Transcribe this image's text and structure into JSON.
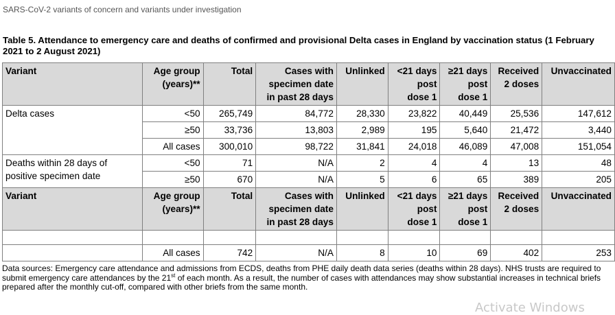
{
  "header": {
    "doc_title": "SARS-CoV-2 variants of concern and variants under investigation"
  },
  "table": {
    "caption": "Table 5. Attendance to emergency care and deaths of confirmed and provisional Delta cases in England by vaccination status (1 February 2021 to 2 August 2021)",
    "columns": [
      [
        "Variant"
      ],
      [
        "Age group",
        "(years)**"
      ],
      [
        "Total"
      ],
      [
        "Cases with",
        "specimen date",
        "in past 28 days"
      ],
      [
        "Unlinked"
      ],
      [
        "<21 days",
        "post",
        "dose 1"
      ],
      [
        "≥21 days",
        "post",
        "dose 1"
      ],
      [
        "Received",
        "2 doses"
      ],
      [
        "Unvaccinated"
      ]
    ],
    "delta_label": "Delta cases",
    "delta_rows": [
      [
        "<50",
        "265,749",
        "84,772",
        "28,330",
        "23,822",
        "40,449",
        "25,536",
        "147,612"
      ],
      [
        "≥50",
        "33,736",
        "13,803",
        "2,989",
        "195",
        "5,640",
        "21,472",
        "3,440"
      ],
      [
        "All cases",
        "300,010",
        "98,722",
        "31,841",
        "24,018",
        "46,089",
        "47,008",
        "151,054"
      ]
    ],
    "deaths_label": [
      "Deaths within 28 days of",
      "positive specimen date"
    ],
    "deaths_rows": [
      [
        "<50",
        "71",
        "N/A",
        "2",
        "4",
        "4",
        "13",
        "48"
      ],
      [
        "≥50",
        "670",
        "N/A",
        "5",
        "6",
        "65",
        "389",
        "205"
      ]
    ],
    "columns_repeat": [
      [
        "Variant"
      ],
      [
        "Age group",
        "(years)**"
      ],
      [
        "Total"
      ],
      [
        "Cases with",
        "specimen date",
        "in past 28 days"
      ],
      [
        "Unlinked"
      ],
      [
        "<21 days",
        "post",
        "dose 1"
      ],
      [
        "≥21 days",
        "post",
        "dose 1"
      ],
      [
        "Received",
        "2 doses"
      ],
      [
        "Unvaccinated"
      ]
    ],
    "last_rows": [
      [
        "All cases",
        "742",
        "N/A",
        "8",
        "10",
        "69",
        "402",
        "253"
      ]
    ]
  },
  "note": {
    "part1": "Data sources: Emergency care attendance and admissions from ECDS, deaths from PHE daily death data series (deaths within 28 days). NHS trusts are required to submit emergency care attendances by the 21",
    "sup": "st",
    "part2": " of each month. As a result, the number of cases with attendances may show substantial increases in technical briefs prepared after the monthly cut-off, compared with other briefs from the same month."
  },
  "watermark": "Activate Windows"
}
